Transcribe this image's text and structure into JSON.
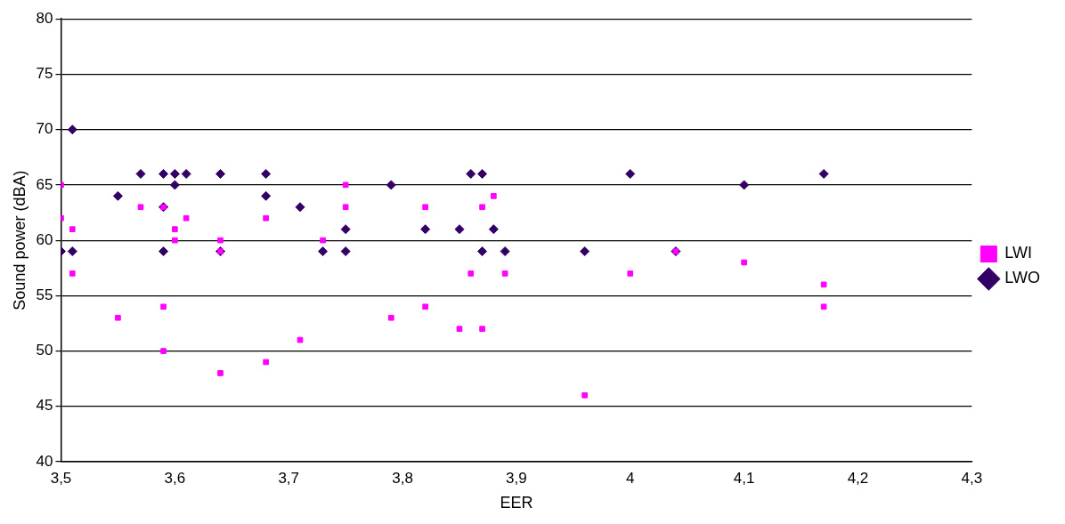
{
  "chart_data": {
    "type": "scatter",
    "xlabel": "EER",
    "ylabel": "Sound power (dBA)",
    "xlim": [
      3.5,
      4.3
    ],
    "xticks": [
      {
        "value": 3.5,
        "label": "3,5"
      },
      {
        "value": 3.6,
        "label": "3,6"
      },
      {
        "value": 3.7,
        "label": "3,7"
      },
      {
        "value": 3.8,
        "label": "3,8"
      },
      {
        "value": 3.9,
        "label": "3,9"
      },
      {
        "value": 4,
        "label": "4"
      },
      {
        "value": 4.1,
        "label": "4,1"
      },
      {
        "value": 4.2,
        "label": "4,2"
      },
      {
        "value": 4.3,
        "label": "4,3"
      }
    ],
    "ylim": [
      40,
      80
    ],
    "yticks": [
      40,
      45,
      50,
      55,
      60,
      65,
      70,
      75,
      80
    ],
    "grid": "y",
    "legend": "right",
    "series": [
      {
        "name": "LWO",
        "color": "#330066",
        "marker": "diamond",
        "x": [
          3.5,
          3.51,
          3.51,
          3.55,
          3.57,
          3.59,
          3.59,
          3.59,
          3.6,
          3.6,
          3.61,
          3.64,
          3.64,
          3.68,
          3.68,
          3.71,
          3.73,
          3.75,
          3.75,
          3.79,
          3.82,
          3.85,
          3.86,
          3.87,
          3.87,
          3.88,
          3.89,
          3.96,
          4.0,
          4.04,
          4.1,
          4.17
        ],
        "values": [
          59,
          70,
          59,
          64,
          66,
          66,
          63,
          59,
          66,
          65,
          66,
          66,
          59,
          66,
          64,
          63,
          59,
          61,
          59,
          65,
          61,
          61,
          66,
          66,
          59,
          61,
          59,
          59,
          66,
          59,
          65,
          66
        ]
      },
      {
        "name": "LWI",
        "color": "#ff00ff",
        "marker": "square",
        "x": [
          3.5,
          3.5,
          3.51,
          3.51,
          3.55,
          3.57,
          3.59,
          3.59,
          3.59,
          3.6,
          3.6,
          3.61,
          3.64,
          3.64,
          3.64,
          3.68,
          3.68,
          3.71,
          3.73,
          3.75,
          3.75,
          3.79,
          3.82,
          3.82,
          3.85,
          3.86,
          3.87,
          3.87,
          3.88,
          3.89,
          3.96,
          4.0,
          4.04,
          4.1,
          4.17,
          4.17
        ],
        "values": [
          65,
          62,
          61,
          57,
          53,
          63,
          63,
          54,
          50,
          61,
          60,
          62,
          60,
          59,
          48,
          62,
          49,
          51,
          60,
          65,
          63,
          53,
          63,
          54,
          52,
          57,
          63,
          52,
          64,
          57,
          46,
          57,
          59,
          58,
          56,
          54
        ]
      }
    ]
  }
}
